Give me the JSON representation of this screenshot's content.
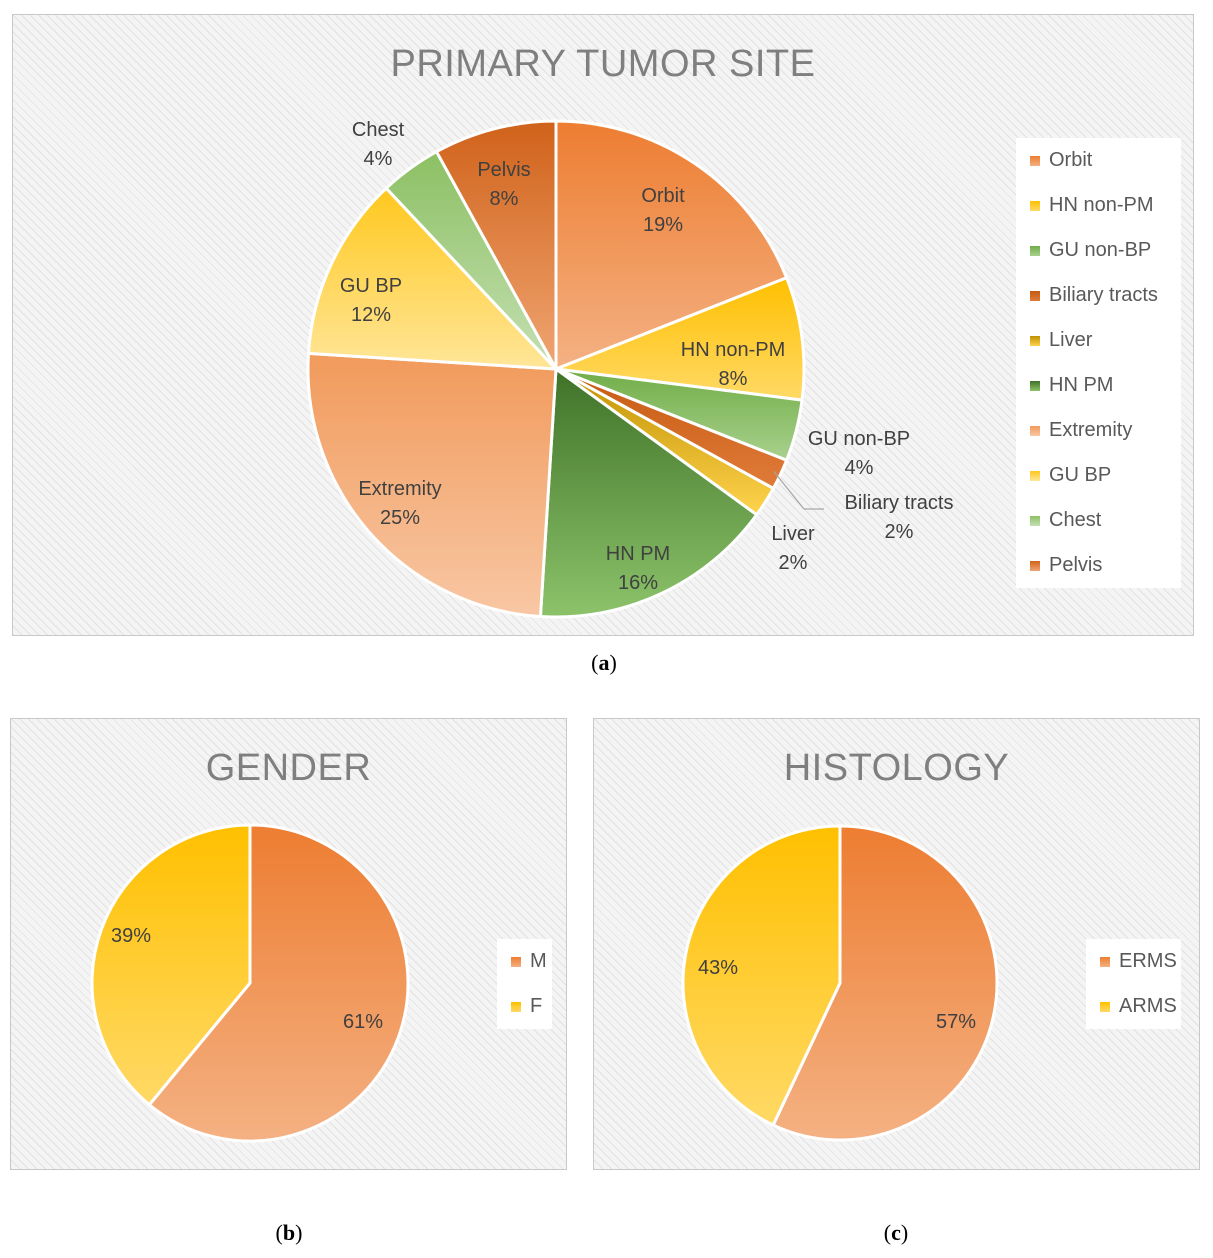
{
  "chart_data": [
    {
      "id": "a",
      "type": "pie",
      "title": "PRIMARY TUMOR SITE",
      "caption": "a",
      "slices": [
        {
          "label": "Orbit",
          "value": 19,
          "pct": "19%",
          "color": "#ED7D31",
          "light": "#F4B183"
        },
        {
          "label": "HN non-PM",
          "value": 8,
          "pct": "8%",
          "color": "#FFC000",
          "light": "#FFD966"
        },
        {
          "label": "GU non-BP",
          "value": 4,
          "pct": "4%",
          "color": "#70AD47",
          "light": "#A9D18E"
        },
        {
          "label": "Biliary tracts",
          "value": 2,
          "pct": "2%",
          "color": "#C55A11",
          "light": "#E07B39"
        },
        {
          "label": "Liver",
          "value": 2,
          "pct": "2%",
          "color": "#BF9000",
          "light": "#FFD34D"
        },
        {
          "label": "HN PM",
          "value": 16,
          "pct": "16%",
          "color": "#3F7228",
          "light": "#8CC36A"
        },
        {
          "label": "Extremity",
          "value": 25,
          "pct": "25%",
          "color": "#F19A5B",
          "light": "#F8C7A4"
        },
        {
          "label": "GU BP",
          "value": 12,
          "pct": "12%",
          "color": "#FFC81E",
          "light": "#FFE699"
        },
        {
          "label": "Chest",
          "value": 4,
          "pct": "4%",
          "color": "#8CC063",
          "light": "#C5E0B4"
        },
        {
          "label": "Pelvis",
          "value": 8,
          "pct": "8%",
          "color": "#D0621A",
          "light": "#F0A572"
        }
      ]
    },
    {
      "id": "b",
      "type": "pie",
      "title": "GENDER",
      "caption": "b",
      "slices": [
        {
          "label": "M",
          "value": 61,
          "pct": "61%",
          "color": "#ED7D31",
          "light": "#F4B183"
        },
        {
          "label": "F",
          "value": 39,
          "pct": "39%",
          "color": "#FFC000",
          "light": "#FFD966"
        }
      ]
    },
    {
      "id": "c",
      "type": "pie",
      "title": "HISTOLOGY",
      "caption": "c",
      "slices": [
        {
          "label": "ERMS",
          "value": 57,
          "pct": "57%",
          "color": "#ED7D31",
          "light": "#F4B183"
        },
        {
          "label": "ARMS",
          "value": 43,
          "pct": "43%",
          "color": "#FFC000",
          "light": "#FFD966"
        }
      ]
    }
  ]
}
